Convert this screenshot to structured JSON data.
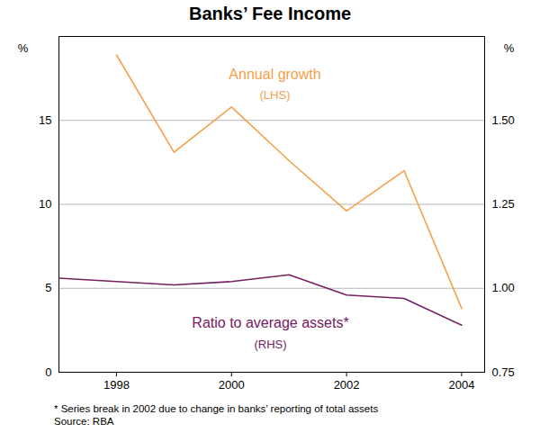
{
  "chart_data": {
    "type": "line",
    "title": "Banks’ Fee Income",
    "x": [
      1997,
      1998,
      1999,
      2000,
      2001,
      2002,
      2003,
      2004
    ],
    "xlim": [
      1997,
      2004.4
    ],
    "xticks": [
      1998,
      2000,
      2002,
      2004
    ],
    "ylim": [
      0,
      20
    ],
    "yticks": [
      0,
      5,
      10,
      15
    ],
    "ylabel": "%",
    "y2lim": [
      0.75,
      1.75
    ],
    "y2ticks": [
      0.75,
      {
        "value": 1,
        "label": "1.00"
      },
      1.25,
      {
        "value": 1.5,
        "label": "1.50"
      }
    ],
    "y2label": "%",
    "grid": true,
    "series": [
      {
        "name": "Annual growth",
        "axis_note": "(LHS)",
        "color": "#f5a04a",
        "values": [
          null,
          18.9,
          13.1,
          15.8,
          12.6,
          9.6,
          12.0,
          3.8
        ]
      },
      {
        "name": "Ratio to average assets*",
        "axis_note": "(RHS)",
        "color": "#75205f",
        "axis": "y2",
        "values": [
          1.03,
          1.02,
          1.01,
          1.02,
          1.04,
          0.98,
          0.97,
          0.89
        ]
      }
    ],
    "notes": [
      "* Series break in 2002 due to change in banks’ reporting of total assets",
      "Source: RBA"
    ]
  }
}
